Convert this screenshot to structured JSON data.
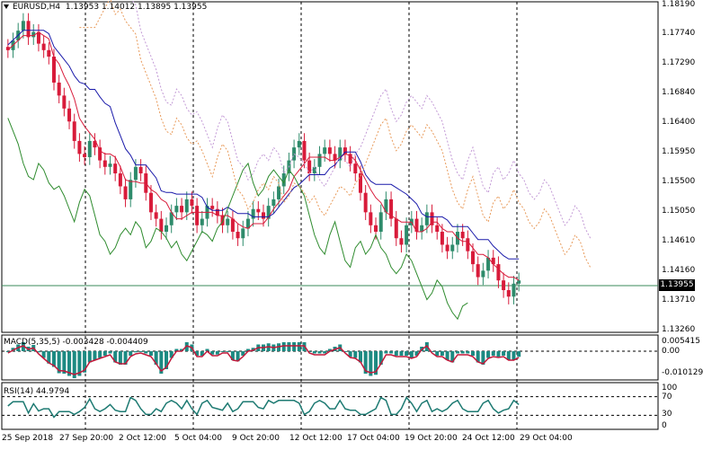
{
  "header": {
    "symbol": "EURUSD,H4",
    "ohlc": "1.13953 1.14012 1.13895 1.13955",
    "dropdown_icon": "triangle-down-icon"
  },
  "price_axis": {
    "labels": [
      "1.18190",
      "1.17740",
      "1.17290",
      "1.16840",
      "1.16400",
      "1.15950",
      "1.15500",
      "1.15050",
      "1.14610",
      "1.14160",
      "1.13710",
      "1.13260"
    ],
    "current_price": "1.13955"
  },
  "macd": {
    "label": "MACD(5,35,5) -0.003428 -0.004409",
    "axis_labels": [
      "0.005415",
      "0.00",
      "-0.010129"
    ]
  },
  "rsi": {
    "label": "RSI(14) 44.9794",
    "axis_labels": [
      "100",
      "70",
      "30",
      "0"
    ]
  },
  "time_axis": [
    "25 Sep 2018",
    "27 Sep 20:00",
    "2 Oct 12:00",
    "5 Oct 04:00",
    "9 Oct 20:00",
    "12 Oct 12:00",
    "17 Oct 04:00",
    "19 Oct 20:00",
    "24 Oct 12:00",
    "29 Oct 04:00"
  ],
  "colors": {
    "bull": "#2e8b6b",
    "bear": "#d81b3a",
    "tenkan": "#d81b3a",
    "kijun": "#1a1aaa",
    "chikou": "#2e8b2e",
    "cloud_a": "#e89a5a",
    "cloud_b": "#c39ad6",
    "macd_hist": "#1d8a82",
    "signal": "#c2183a",
    "rsi": "#1d7a72",
    "grid": "#000000"
  },
  "chart_data": {
    "type": "candlestick",
    "symbol": "EURUSD",
    "timeframe": "H4",
    "ylim": [
      1.1326,
      1.1819
    ],
    "closes": [
      1.175,
      1.1765,
      1.178,
      1.1795,
      1.177,
      1.1778,
      1.176,
      1.175,
      1.174,
      1.17,
      1.168,
      1.166,
      1.164,
      1.161,
      1.159,
      1.1585,
      1.161,
      1.16,
      1.158,
      1.157,
      1.1575,
      1.156,
      1.154,
      1.152,
      1.155,
      1.157,
      1.156,
      1.153,
      1.15,
      1.149,
      1.147,
      1.148,
      1.15,
      1.151,
      1.15,
      1.152,
      1.151,
      1.148,
      1.149,
      1.151,
      1.1505,
      1.1495,
      1.148,
      1.149,
      1.147,
      1.146,
      1.1475,
      1.149,
      1.1505,
      1.15,
      1.149,
      1.151,
      1.152,
      1.154,
      1.156,
      1.158,
      1.16,
      1.161,
      1.158,
      1.156,
      1.157,
      1.159,
      1.16,
      1.159,
      1.158,
      1.16,
      1.159,
      1.1575,
      1.156,
      1.153,
      1.15,
      1.148,
      1.147,
      1.15,
      1.152,
      1.149,
      1.146,
      1.145,
      1.148,
      1.149,
      1.147,
      1.148,
      1.15,
      1.148,
      1.147,
      1.145,
      1.144,
      1.145,
      1.147,
      1.146,
      1.144,
      1.142,
      1.14,
      1.141,
      1.143,
      1.142,
      1.1395,
      1.138,
      1.137,
      1.139,
      1.1395
    ],
    "macd_last": -0.003428,
    "signal_last": -0.004409,
    "rsi_last": 44.9794,
    "rsi_levels": [
      70,
      30
    ]
  }
}
